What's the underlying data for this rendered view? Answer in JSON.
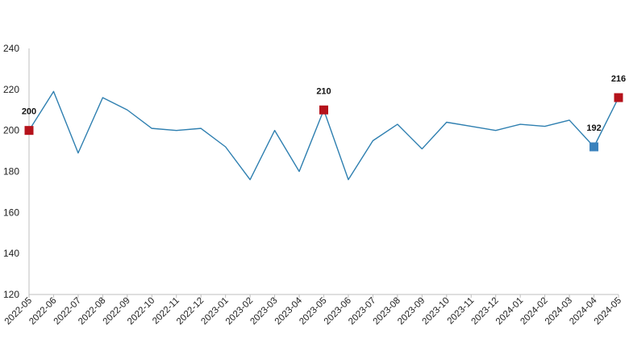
{
  "chart_data": {
    "type": "line",
    "title": "",
    "xlabel": "",
    "ylabel": "",
    "ylim": [
      120,
      240
    ],
    "yticks": [
      120,
      140,
      160,
      180,
      200,
      220,
      240
    ],
    "grid": false,
    "legend": "none",
    "categories": [
      "2022-05",
      "2022-06",
      "2022-07",
      "2022-08",
      "2022-09",
      "2022-10",
      "2022-11",
      "2022-12",
      "2023-01",
      "2023-02",
      "2023-03",
      "2023-04",
      "2023-05",
      "2023-06",
      "2023-07",
      "2023-08",
      "2023-09",
      "2023-10",
      "2023-11",
      "2023-12",
      "2024-01",
      "2024-02",
      "2024-03",
      "2024-04",
      "2024-05"
    ],
    "series": [
      {
        "values": [
          200,
          219,
          189,
          216,
          210,
          201,
          200,
          201,
          192,
          176,
          200,
          180,
          210,
          176,
          195,
          203,
          191,
          204,
          202,
          200,
          203,
          202,
          205,
          192,
          216
        ],
        "color": "#2e7fb0"
      }
    ],
    "highlights": [
      {
        "index": 0,
        "label": "200",
        "color": "#b5121b"
      },
      {
        "index": 12,
        "label": "210",
        "color": "#b5121b"
      },
      {
        "index": 23,
        "label": "192",
        "color": "#3a82bd"
      },
      {
        "index": 24,
        "label": "216",
        "color": "#b5121b"
      }
    ],
    "colors": {
      "line": "#2e7fb0",
      "axis": "#bfbfbf",
      "max_marker": "#b5121b",
      "min_marker": "#3a82bd"
    }
  }
}
